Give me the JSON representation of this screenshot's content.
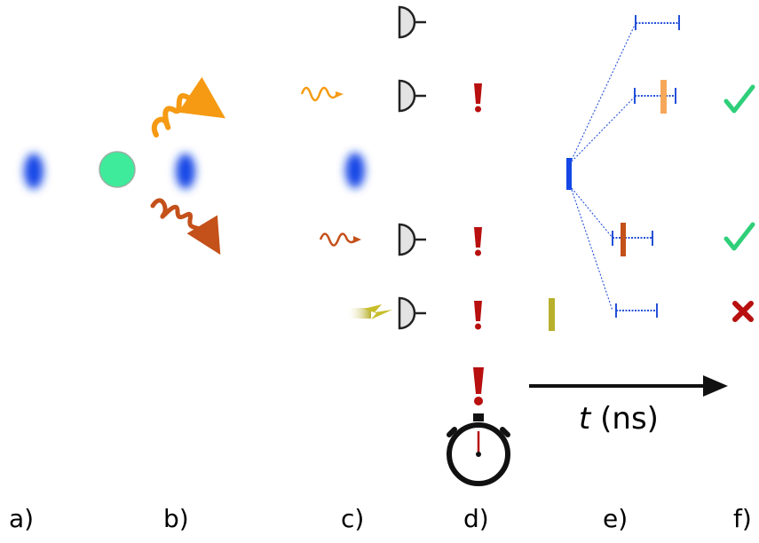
{
  "panels": {
    "a": "a)",
    "b": "b)",
    "c": "c)",
    "d": "d)",
    "e": "e)",
    "f": "f)"
  },
  "axis": {
    "variable": "t",
    "unit": "(ns)"
  },
  "icons": {
    "detector": "detector-icon",
    "alert": "exclamation-icon",
    "stopwatch": "stopwatch-icon",
    "check": "check-icon",
    "cross": "cross-icon",
    "photon": "photon-icon",
    "noise": "lightning-icon"
  },
  "colors": {
    "cloud_blue": "#1447e6",
    "green_sphere": "#3deb9a",
    "photon_orange": "#f59a12",
    "photon_brown": "#c4501a",
    "noise_olive": "#b8b02c",
    "alert_red": "#b80f0f",
    "window_blue": "#2450d8",
    "window_marker_orange": "#f5a85a",
    "check_green": "#2fcf7a",
    "cross_red": "#b80f0f"
  }
}
